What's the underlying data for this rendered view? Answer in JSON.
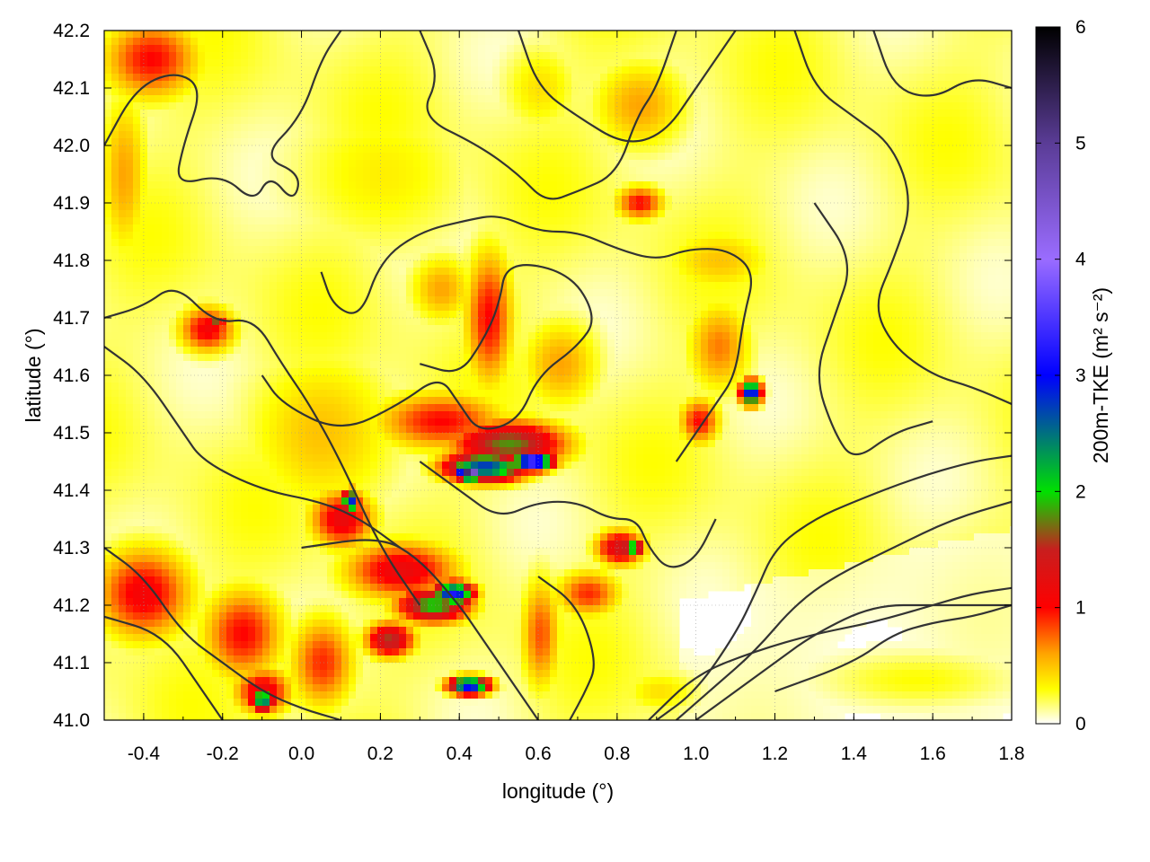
{
  "chart_data": {
    "type": "heatmap",
    "title": "",
    "xlabel": "longitude (°)",
    "ylabel": "latitude (°)",
    "xlim": [
      -0.5,
      1.8
    ],
    "ylim": [
      41.0,
      42.2
    ],
    "x_ticks": [
      "-0.4",
      "-0.2",
      "0.0",
      "0.2",
      "0.4",
      "0.6",
      "0.8",
      "1.0",
      "1.2",
      "1.4",
      "1.6",
      "1.8"
    ],
    "x_tick_values": [
      -0.4,
      -0.2,
      0.0,
      0.2,
      0.4,
      0.6,
      0.8,
      1.0,
      1.2,
      1.4,
      1.6,
      1.8
    ],
    "y_ticks": [
      "41.0",
      "41.1",
      "41.2",
      "41.3",
      "41.4",
      "41.5",
      "41.6",
      "41.7",
      "41.8",
      "41.9",
      "42.0",
      "42.1",
      "42.2"
    ],
    "y_tick_values": [
      41.0,
      41.1,
      41.2,
      41.3,
      41.4,
      41.5,
      41.6,
      41.7,
      41.8,
      41.9,
      42.0,
      42.1,
      42.2
    ],
    "grid": true,
    "colorbar": {
      "label": "200m-TKE (m² s⁻²)",
      "range": [
        0,
        6
      ],
      "ticks": [
        "0",
        "1",
        "2",
        "3",
        "4",
        "5",
        "6"
      ],
      "tick_values": [
        0,
        1,
        2,
        3,
        4,
        5,
        6
      ],
      "stops": [
        {
          "value": 0.0,
          "color": "#ffffff"
        },
        {
          "value": 0.3,
          "color": "#ffff00"
        },
        {
          "value": 0.6,
          "color": "#ffa500"
        },
        {
          "value": 1.0,
          "color": "#ff0000"
        },
        {
          "value": 1.5,
          "color": "#c81e1e"
        },
        {
          "value": 2.0,
          "color": "#00e000"
        },
        {
          "value": 3.0,
          "color": "#0000ff"
        },
        {
          "value": 4.0,
          "color": "#9a6cff"
        },
        {
          "value": 5.0,
          "color": "#5a3c96"
        },
        {
          "value": 6.0,
          "color": "#000000"
        }
      ]
    },
    "hotspots": [
      {
        "lon": -0.38,
        "lat": 42.15,
        "lon_r": 0.12,
        "lat_r": 0.07,
        "value": 1.0
      },
      {
        "lon": -0.45,
        "lat": 41.95,
        "lon_r": 0.06,
        "lat_r": 0.15,
        "value": 0.6
      },
      {
        "lon": -0.4,
        "lat": 41.22,
        "lon_r": 0.12,
        "lat_r": 0.08,
        "value": 1.1
      },
      {
        "lon": -0.15,
        "lat": 41.15,
        "lon_r": 0.1,
        "lat_r": 0.08,
        "value": 1.0
      },
      {
        "lon": -0.1,
        "lat": 41.05,
        "lon_r": 0.07,
        "lat_r": 0.04,
        "value": 1.2
      },
      {
        "lon": -0.1,
        "lat": 41.035,
        "lon_r": 0.03,
        "lat_r": 0.02,
        "value": 2.6
      },
      {
        "lon": -0.24,
        "lat": 41.68,
        "lon_r": 0.07,
        "lat_r": 0.04,
        "value": 1.1
      },
      {
        "lon": -0.22,
        "lat": 41.69,
        "lon_r": 0.025,
        "lat_r": 0.01,
        "value": 1.9
      },
      {
        "lon": 0.05,
        "lat": 41.5,
        "lon_r": 0.2,
        "lat_r": 0.15,
        "value": 0.5
      },
      {
        "lon": 0.1,
        "lat": 41.35,
        "lon_r": 0.08,
        "lat_r": 0.05,
        "value": 1.2
      },
      {
        "lon": 0.12,
        "lat": 41.38,
        "lon_r": 0.02,
        "lat_r": 0.02,
        "value": 3.0
      },
      {
        "lon": 0.25,
        "lat": 41.26,
        "lon_r": 0.14,
        "lat_r": 0.05,
        "value": 1.2
      },
      {
        "lon": 0.33,
        "lat": 41.2,
        "lon_r": 0.09,
        "lat_r": 0.03,
        "value": 2.0
      },
      {
        "lon": 0.38,
        "lat": 41.22,
        "lon_r": 0.05,
        "lat_r": 0.02,
        "value": 3.2
      },
      {
        "lon": 0.22,
        "lat": 41.14,
        "lon_r": 0.06,
        "lat_r": 0.03,
        "value": 1.6
      },
      {
        "lon": 0.42,
        "lat": 41.06,
        "lon_r": 0.05,
        "lat_r": 0.015,
        "value": 3.2
      },
      {
        "lon": 0.35,
        "lat": 41.52,
        "lon_r": 0.16,
        "lat_r": 0.05,
        "value": 1.0
      },
      {
        "lon": 0.52,
        "lat": 41.48,
        "lon_r": 0.14,
        "lat_r": 0.04,
        "value": 1.8
      },
      {
        "lon": 0.46,
        "lat": 41.44,
        "lon_r": 0.1,
        "lat_r": 0.025,
        "value": 2.8
      },
      {
        "lon": 0.42,
        "lat": 41.43,
        "lon_r": 0.03,
        "lat_r": 0.012,
        "value": 5.5
      },
      {
        "lon": 0.58,
        "lat": 41.45,
        "lon_r": 0.05,
        "lat_r": 0.015,
        "value": 4.0
      },
      {
        "lon": 0.47,
        "lat": 41.7,
        "lon_r": 0.06,
        "lat_r": 0.12,
        "value": 1.0
      },
      {
        "lon": 0.35,
        "lat": 41.75,
        "lon_r": 0.08,
        "lat_r": 0.06,
        "value": 0.6
      },
      {
        "lon": 0.65,
        "lat": 41.62,
        "lon_r": 0.1,
        "lat_r": 0.08,
        "value": 0.6
      },
      {
        "lon": 0.8,
        "lat": 41.3,
        "lon_r": 0.06,
        "lat_r": 0.03,
        "value": 1.4
      },
      {
        "lon": 0.83,
        "lat": 41.3,
        "lon_r": 0.03,
        "lat_r": 0.012,
        "value": 2.6
      },
      {
        "lon": 0.72,
        "lat": 41.22,
        "lon_r": 0.08,
        "lat_r": 0.04,
        "value": 0.9
      },
      {
        "lon": 1.0,
        "lat": 41.52,
        "lon_r": 0.05,
        "lat_r": 0.04,
        "value": 1.0
      },
      {
        "lon": 1.13,
        "lat": 41.57,
        "lon_r": 0.025,
        "lat_r": 0.02,
        "value": 3.3
      },
      {
        "lon": 1.05,
        "lat": 41.65,
        "lon_r": 0.08,
        "lat_r": 0.08,
        "value": 0.7
      },
      {
        "lon": 1.05,
        "lat": 41.8,
        "lon_r": 0.14,
        "lat_r": 0.06,
        "value": 0.5
      },
      {
        "lon": 0.85,
        "lat": 41.9,
        "lon_r": 0.06,
        "lat_r": 0.03,
        "value": 1.0
      },
      {
        "lon": 0.85,
        "lat": 42.07,
        "lon_r": 0.12,
        "lat_r": 0.08,
        "value": 0.6
      },
      {
        "lon": 0.6,
        "lat": 42.1,
        "lon_r": 0.1,
        "lat_r": 0.08,
        "value": 0.4
      },
      {
        "lon": 0.2,
        "lat": 41.95,
        "lon_r": 0.25,
        "lat_r": 0.15,
        "value": 0.35
      },
      {
        "lon": 0.6,
        "lat": 41.15,
        "lon_r": 0.05,
        "lat_r": 0.1,
        "value": 0.8
      },
      {
        "lon": 0.05,
        "lat": 41.1,
        "lon_r": 0.08,
        "lat_r": 0.08,
        "value": 0.9
      },
      {
        "lon": 1.55,
        "lat": 41.07,
        "lon_r": 0.25,
        "lat_r": 0.05,
        "value": 0.3
      },
      {
        "lon": 0.9,
        "lat": 41.05,
        "lon_r": 0.1,
        "lat_r": 0.04,
        "value": 0.4
      }
    ],
    "contours": [
      [
        [
          -0.5,
          42.0
        ],
        [
          -0.42,
          42.1
        ],
        [
          -0.32,
          42.13
        ],
        [
          -0.25,
          42.1
        ],
        [
          -0.3,
          42.0
        ],
        [
          -0.32,
          41.93
        ],
        [
          -0.2,
          41.95
        ],
        [
          -0.12,
          41.9
        ],
        [
          -0.08,
          41.95
        ],
        [
          -0.02,
          41.9
        ],
        [
          0.0,
          41.95
        ],
        [
          -0.1,
          41.98
        ],
        [
          0.0,
          42.05
        ],
        [
          0.05,
          42.15
        ],
        [
          0.1,
          42.2
        ]
      ],
      [
        [
          -0.5,
          41.7
        ],
        [
          -0.4,
          41.72
        ],
        [
          -0.32,
          41.76
        ],
        [
          -0.22,
          41.69
        ],
        [
          -0.12,
          41.7
        ],
        [
          -0.05,
          41.62
        ],
        [
          0.02,
          41.55
        ],
        [
          0.1,
          41.45
        ],
        [
          0.2,
          41.3
        ],
        [
          0.3,
          41.2
        ]
      ],
      [
        [
          -0.5,
          41.65
        ],
        [
          -0.4,
          41.6
        ],
        [
          -0.3,
          41.5
        ],
        [
          -0.25,
          41.45
        ],
        [
          -0.1,
          41.4
        ],
        [
          0.05,
          41.38
        ],
        [
          0.15,
          41.35
        ],
        [
          0.25,
          41.3
        ]
      ],
      [
        [
          -0.5,
          41.3
        ],
        [
          -0.4,
          41.25
        ],
        [
          -0.3,
          41.15
        ],
        [
          -0.2,
          41.1
        ],
        [
          -0.1,
          41.05
        ],
        [
          0.0,
          41.02
        ],
        [
          0.1,
          41.0
        ]
      ],
      [
        [
          -0.5,
          41.18
        ],
        [
          -0.35,
          41.15
        ],
        [
          -0.25,
          41.05
        ],
        [
          -0.2,
          41.0
        ]
      ],
      [
        [
          -0.1,
          41.6
        ],
        [
          -0.05,
          41.55
        ],
        [
          0.1,
          41.5
        ],
        [
          0.25,
          41.55
        ],
        [
          0.35,
          41.6
        ],
        [
          0.4,
          41.55
        ],
        [
          0.45,
          41.5
        ],
        [
          0.55,
          41.52
        ],
        [
          0.6,
          41.6
        ],
        [
          0.7,
          41.65
        ],
        [
          0.75,
          41.7
        ],
        [
          0.68,
          41.78
        ],
        [
          0.52,
          41.8
        ],
        [
          0.5,
          41.72
        ],
        [
          0.46,
          41.66
        ],
        [
          0.4,
          41.6
        ],
        [
          0.3,
          41.62
        ]
      ],
      [
        [
          0.0,
          41.3
        ],
        [
          0.2,
          41.32
        ],
        [
          0.3,
          41.28
        ],
        [
          0.4,
          41.2
        ],
        [
          0.45,
          41.15
        ],
        [
          0.5,
          41.1
        ],
        [
          0.55,
          41.05
        ],
        [
          0.6,
          41.0
        ]
      ],
      [
        [
          0.3,
          41.45
        ],
        [
          0.4,
          41.4
        ],
        [
          0.5,
          41.35
        ],
        [
          0.6,
          41.38
        ],
        [
          0.7,
          41.38
        ],
        [
          0.78,
          41.35
        ],
        [
          0.85,
          41.35
        ],
        [
          0.88,
          41.3
        ],
        [
          0.93,
          41.26
        ],
        [
          1.0,
          41.28
        ],
        [
          1.05,
          41.35
        ]
      ],
      [
        [
          0.6,
          41.25
        ],
        [
          0.7,
          41.2
        ],
        [
          0.75,
          41.1
        ],
        [
          0.72,
          41.05
        ],
        [
          0.68,
          41.0
        ]
      ],
      [
        [
          0.9,
          41.0
        ],
        [
          1.0,
          41.05
        ],
        [
          1.1,
          41.15
        ],
        [
          1.15,
          41.22
        ],
        [
          1.2,
          41.3
        ],
        [
          1.3,
          41.35
        ],
        [
          1.4,
          41.38
        ],
        [
          1.55,
          41.42
        ],
        [
          1.7,
          41.45
        ],
        [
          1.8,
          41.46
        ]
      ],
      [
        [
          0.95,
          41.0
        ],
        [
          1.05,
          41.06
        ],
        [
          1.15,
          41.12
        ],
        [
          1.25,
          41.2
        ],
        [
          1.35,
          41.25
        ],
        [
          1.5,
          41.3
        ],
        [
          1.65,
          41.35
        ],
        [
          1.8,
          41.38
        ]
      ],
      [
        [
          1.0,
          41.0
        ],
        [
          1.2,
          41.1
        ],
        [
          1.3,
          41.15
        ],
        [
          1.45,
          41.2
        ],
        [
          1.6,
          41.2
        ],
        [
          1.8,
          41.2
        ]
      ],
      [
        [
          1.2,
          41.05
        ],
        [
          1.4,
          41.1
        ],
        [
          1.5,
          41.15
        ],
        [
          1.6,
          41.17
        ],
        [
          1.7,
          41.18
        ],
        [
          1.8,
          41.2
        ]
      ],
      [
        [
          0.95,
          41.45
        ],
        [
          1.0,
          41.5
        ],
        [
          1.05,
          41.55
        ],
        [
          1.1,
          41.6
        ],
        [
          1.12,
          41.7
        ],
        [
          1.15,
          41.78
        ],
        [
          1.08,
          41.82
        ],
        [
          0.98,
          41.82
        ],
        [
          0.9,
          41.8
        ],
        [
          0.8,
          41.82
        ],
        [
          0.7,
          41.85
        ],
        [
          0.6,
          41.85
        ],
        [
          0.5,
          41.88
        ],
        [
          0.42,
          41.87
        ],
        [
          0.3,
          41.85
        ],
        [
          0.2,
          41.8
        ],
        [
          0.15,
          41.7
        ],
        [
          0.08,
          41.72
        ],
        [
          0.05,
          41.78
        ]
      ],
      [
        [
          0.3,
          42.2
        ],
        [
          0.35,
          42.12
        ],
        [
          0.3,
          42.05
        ],
        [
          0.45,
          42.0
        ],
        [
          0.55,
          41.95
        ],
        [
          0.62,
          41.9
        ],
        [
          0.7,
          41.92
        ],
        [
          0.8,
          41.95
        ],
        [
          0.85,
          42.05
        ],
        [
          0.9,
          42.1
        ],
        [
          0.95,
          42.2
        ]
      ],
      [
        [
          0.55,
          42.2
        ],
        [
          0.6,
          42.1
        ],
        [
          0.7,
          42.05
        ],
        [
          0.82,
          42.0
        ],
        [
          0.92,
          42.02
        ],
        [
          1.0,
          42.1
        ],
        [
          1.05,
          42.15
        ],
        [
          1.1,
          42.2
        ]
      ],
      [
        [
          1.25,
          42.2
        ],
        [
          1.3,
          42.1
        ],
        [
          1.4,
          42.05
        ],
        [
          1.5,
          42.0
        ],
        [
          1.55,
          41.9
        ],
        [
          1.5,
          41.8
        ],
        [
          1.45,
          41.72
        ],
        [
          1.5,
          41.65
        ],
        [
          1.6,
          41.6
        ],
        [
          1.7,
          41.58
        ],
        [
          1.8,
          41.55
        ]
      ],
      [
        [
          1.3,
          41.9
        ],
        [
          1.4,
          41.8
        ],
        [
          1.35,
          41.7
        ],
        [
          1.3,
          41.6
        ],
        [
          1.35,
          41.5
        ],
        [
          1.4,
          41.45
        ],
        [
          1.5,
          41.5
        ],
        [
          1.6,
          41.52
        ]
      ],
      [
        [
          1.45,
          42.2
        ],
        [
          1.5,
          42.1
        ],
        [
          1.6,
          42.08
        ],
        [
          1.7,
          42.12
        ],
        [
          1.8,
          42.1
        ]
      ]
    ],
    "coastline": [
      [
        0.88,
        41.0
      ],
      [
        1.0,
        41.08
      ],
      [
        1.15,
        41.12
      ],
      [
        1.3,
        41.15
      ],
      [
        1.45,
        41.17
      ],
      [
        1.6,
        41.2
      ],
      [
        1.7,
        41.22
      ],
      [
        1.8,
        41.23
      ]
    ]
  }
}
